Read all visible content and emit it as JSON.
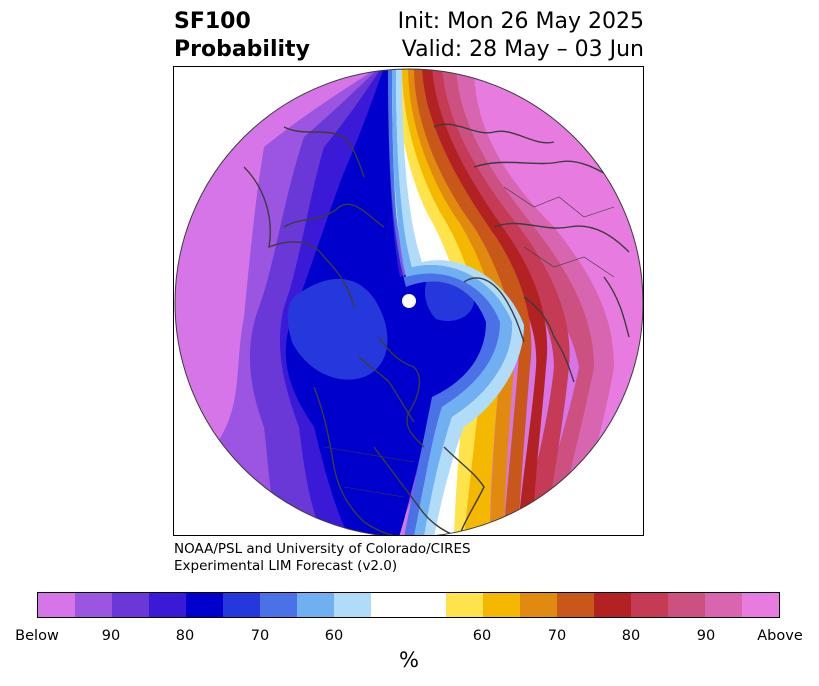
{
  "title": {
    "left_line1": "SF100",
    "left_line2": "Probability",
    "right_line1": "Init: Mon 26 May 2025",
    "right_line2": "Valid: 28 May – 03 Jun"
  },
  "credit": {
    "line1": "NOAA/PSL and University of Colorado/CIRES",
    "line2": "Experimental LIM Forecast (v2.0)"
  },
  "colorbar": {
    "colors": [
      "#d675e8",
      "#9b55e0",
      "#6b38d8",
      "#3a1ad6",
      "#0000cc",
      "#2538db",
      "#4a72e6",
      "#70aff2",
      "#b0dcfa",
      "#ffffff",
      "#ffe34a",
      "#f4b800",
      "#e08a10",
      "#c8581a",
      "#b22222",
      "#c53a55",
      "#cc5080",
      "#d865b0",
      "#e87be0"
    ],
    "labels": [
      "Below",
      "90",
      "80",
      "70",
      "60",
      "60",
      "70",
      "80",
      "90",
      "Above"
    ],
    "unit": "%"
  },
  "map": {
    "projection": "north polar stereographic",
    "fill_colors": {
      "below_outer": "#d675e8",
      "below_90": "#9b55e0",
      "below_80": "#6b38d8",
      "below_70": "#3a1ad6",
      "below_deep": "#0000cc",
      "below_core": "#2538db",
      "below_60": "#4a72e6",
      "below_50": "#70aff2",
      "below_light": "#b0dcfa",
      "neutral": "#ffffff",
      "above_yellow": "#ffe34a",
      "above_gold": "#f4b800",
      "above_orange": "#e08a10",
      "above_darkorange": "#c8581a",
      "above_red": "#b22222",
      "above_crimson": "#c53a55",
      "above_rose": "#cc5080",
      "above_pink": "#d865b0",
      "above_magenta": "#e87be0"
    },
    "coastline_color": "#3c3c3c",
    "pole_marker_color": "#ffffff"
  }
}
